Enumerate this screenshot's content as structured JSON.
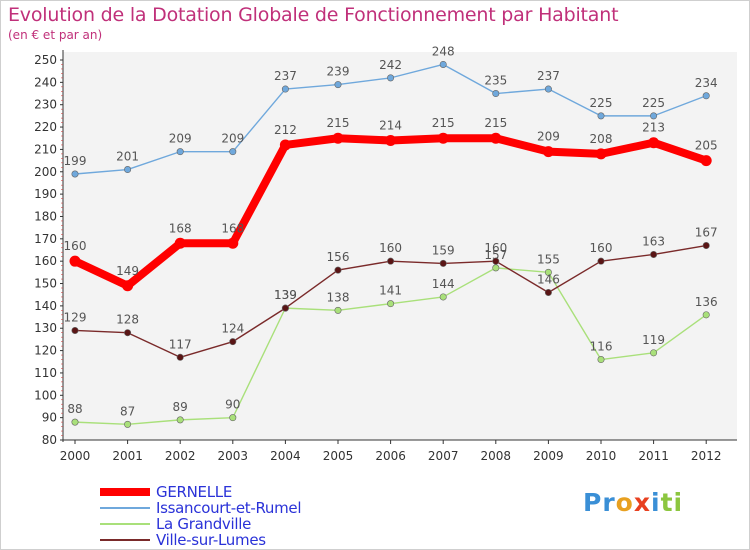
{
  "title": "Evolution de la Dotation Globale de Fonctionnement par Habitant",
  "subtitle": "(en € et par an)",
  "logo": {
    "letters": [
      {
        "ch": "P",
        "color": "#3a8fd6"
      },
      {
        "ch": "r",
        "color": "#3a8fd6"
      },
      {
        "ch": "o",
        "color": "#e8a020"
      },
      {
        "ch": "x",
        "color": "#e84020"
      },
      {
        "ch": "i",
        "color": "#3a8fd6"
      },
      {
        "ch": "t",
        "color": "#8cc63f"
      },
      {
        "ch": "i",
        "color": "#8cc63f"
      }
    ]
  },
  "chart_data": {
    "type": "line",
    "categories": [
      "2000",
      "2001",
      "2002",
      "2003",
      "2004",
      "2005",
      "2006",
      "2007",
      "2008",
      "2009",
      "2010",
      "2011",
      "2012"
    ],
    "ylim": [
      80,
      250
    ],
    "yticks": [
      80,
      90,
      100,
      110,
      120,
      130,
      140,
      150,
      160,
      170,
      180,
      190,
      200,
      210,
      220,
      230,
      240,
      250
    ],
    "grid": false,
    "legend_position": "bottom-left",
    "series": [
      {
        "name": "GERNELLE",
        "color": "#ff0000",
        "bold": true,
        "values": [
          160,
          149,
          168,
          168,
          212,
          215,
          214,
          215,
          215,
          209,
          208,
          213,
          205
        ],
        "labels": [
          "160",
          "149",
          "168",
          "168",
          "212",
          "215",
          "214",
          "215",
          "215",
          "209",
          "208",
          "213",
          "205"
        ]
      },
      {
        "name": "Issancourt-et-Rumel",
        "color": "#6fa8dc",
        "bold": false,
        "values": [
          199,
          201,
          209,
          209,
          237,
          239,
          242,
          248,
          235,
          237,
          225,
          225,
          234
        ],
        "labels": [
          "199",
          "201",
          "209",
          "209",
          "237",
          "239",
          "242",
          "248",
          "235",
          "237",
          "225",
          "225",
          "234"
        ]
      },
      {
        "name": "La Grandville",
        "color": "#a9e07a",
        "bold": false,
        "values": [
          88,
          87,
          89,
          90,
          139,
          138,
          141,
          144,
          157,
          155,
          116,
          119,
          136
        ],
        "labels": [
          "88",
          "87",
          "89",
          "90",
          "139",
          "138",
          "141",
          "144",
          "157",
          "155",
          "116",
          "119",
          "136"
        ]
      },
      {
        "name": "Ville-sur-Lumes",
        "color": "#7a2a2a",
        "bold": false,
        "values": [
          129,
          128,
          117,
          124,
          139,
          156,
          160,
          159,
          160,
          146,
          160,
          163,
          167
        ],
        "labels": [
          "129",
          "128",
          "117",
          "124",
          "139",
          "156",
          "160",
          "159",
          "160",
          "146",
          "160",
          "163",
          "167"
        ]
      }
    ]
  }
}
